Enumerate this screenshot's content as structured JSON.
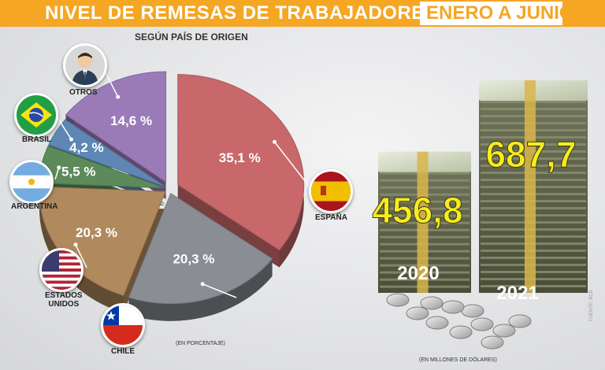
{
  "header": {
    "title": "NIVEL DE REMESAS DE TRABAJADORES DE",
    "title_accent": "ENERO A JUNIO",
    "accent_color": "#f5a623"
  },
  "notes": {
    "percent_note": "(EN PORCENTAJE)",
    "dollars_note": "(EN MILLONES DE DÓLARES)",
    "source": "FUENTE: BCB"
  },
  "chart_data": [
    {
      "type": "pie",
      "title": "SEGÚN PAÍS DE ORIGEN",
      "unit_note": "(EN PORCENTAJE)",
      "categories": [
        "ESPAÑA",
        "CHILE",
        "ESTADOS UNIDOS",
        "ARGENTINA",
        "BRASIL",
        "OTROS"
      ],
      "values": [
        35.1,
        20.3,
        20.3,
        5.5,
        4.2,
        14.6
      ],
      "labels": [
        "35,1 %",
        "20,3 %",
        "20,3 %",
        "5,5 %",
        "4,2 %",
        "14,6 %"
      ],
      "colors": [
        "#c8686b",
        "#8a8d93",
        "#b08a5e",
        "#5c8a5a",
        "#5e87b5",
        "#9b7ab8"
      ],
      "icons": [
        "spain-flag-icon",
        "chile-flag-icon",
        "usa-flag-icon",
        "argentina-flag-icon",
        "brazil-flag-icon",
        "person-icon"
      ]
    },
    {
      "type": "bar",
      "title": "",
      "unit_note": "(EN MILLONES DE DÓLARES)",
      "categories": [
        "2020",
        "2021"
      ],
      "values": [
        456.8,
        687.7
      ],
      "labels": [
        "456,8",
        "687,7"
      ],
      "value_color": "#f7ec1c"
    }
  ],
  "legend": {
    "espana": "ESPAÑA",
    "chile": "CHILE",
    "eeuu_1": "ESTADOS",
    "eeuu_2": "UNIDOS",
    "argentina": "ARGENTINA",
    "brasil": "BRASIL",
    "otros": "OTROS"
  }
}
